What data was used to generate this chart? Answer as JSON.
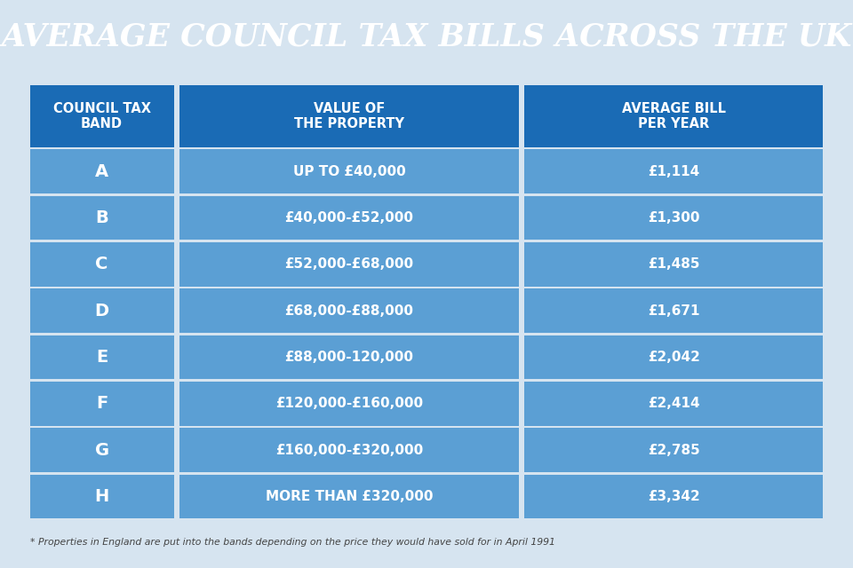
{
  "title": "AVERAGE COUNCIL TAX BILLS ACROSS THE UK",
  "title_bg_color": "#2F8FCF",
  "title_text_color": "#FFFFFF",
  "bg_color": "#D6E4F0",
  "header_bg_color": "#1A6BB5",
  "header_text_color": "#FFFFFF",
  "row_bg_color": "#5B9FD4",
  "row_text_color": "#FFFFFF",
  "gap_color": "#D6E4F0",
  "col_headers": [
    "COUNCIL TAX\nBAND",
    "VALUE OF\nTHE PROPERTY",
    "AVERAGE BILL\nPER YEAR"
  ],
  "bands": [
    "A",
    "B",
    "C",
    "D",
    "E",
    "F",
    "G",
    "H"
  ],
  "property_values": [
    "UP TO £40,000",
    "£40,000-£52,000",
    "£52,000-£68,000",
    "£68,000-£88,000",
    "£88,000-120,000",
    "£120,000-£160,000",
    "£160,000-£320,000",
    "MORE THAN £320,000"
  ],
  "avg_bills": [
    "£1,114",
    "£1,300",
    "£1,485",
    "£1,671",
    "£2,042",
    "£2,414",
    "£2,785",
    "£3,342"
  ],
  "footnote": "* Properties in England are put into the bands depending on the price they would have sold for in April 1991",
  "footnote_color": "#444444",
  "fig_width": 9.6,
  "fig_height": 6.4,
  "dpi": 100
}
